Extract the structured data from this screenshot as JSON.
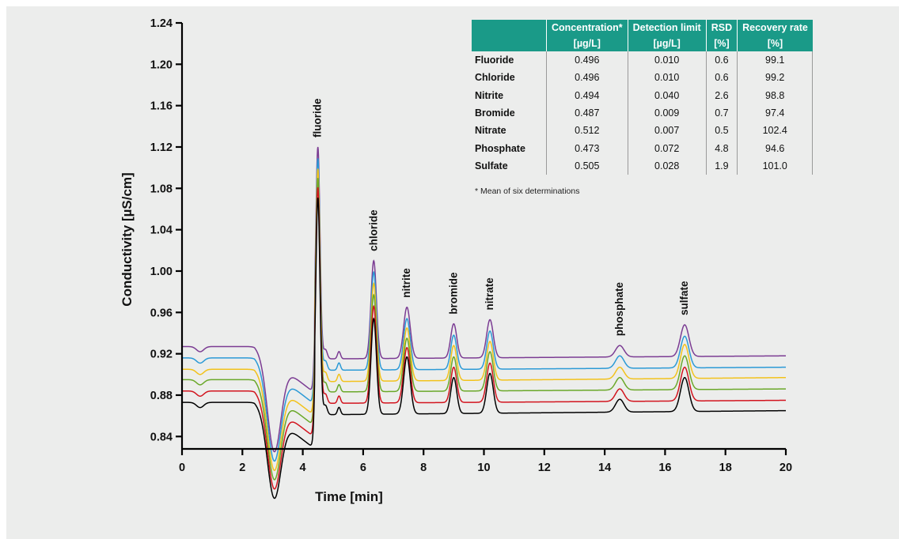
{
  "chart_data": {
    "type": "line",
    "xlabel": "Time [min]",
    "ylabel": "Conductivity [µS/cm]",
    "xlim": [
      0,
      20
    ],
    "ylim": [
      0.828,
      1.24
    ],
    "x_ticks": [
      "0",
      "2",
      "4",
      "6",
      "8",
      "10",
      "12",
      "14",
      "16",
      "18",
      "20"
    ],
    "y_ticks": [
      "0.84",
      "0.88",
      "0.92",
      "0.96",
      "1.00",
      "1.04",
      "1.08",
      "1.12",
      "1.16",
      "1.20",
      "1.24"
    ],
    "grid": false,
    "legend": "none",
    "series_colors": [
      "#000000",
      "#d2141e",
      "#6aa829",
      "#f2c21b",
      "#2b9ad6",
      "#7b3c93"
    ],
    "baselines_start": [
      0.873,
      0.884,
      0.895,
      0.905,
      0.916,
      0.927
    ],
    "baselines_end": [
      0.865,
      0.875,
      0.886,
      0.897,
      0.907,
      0.918
    ],
    "dip_minima": [
      0.795,
      0.804,
      0.813,
      0.822,
      0.831,
      0.84
    ],
    "peaks": [
      {
        "name": "fluoride",
        "time": 4.5,
        "apex": [
          1.071,
          1.081,
          1.09,
          1.099,
          1.109,
          1.12
        ]
      },
      {
        "name": "chloride",
        "time": 6.35,
        "apex": [
          0.954,
          0.966,
          0.977,
          0.988,
          0.999,
          1.01
        ]
      },
      {
        "name": "nitrite",
        "time": 7.45,
        "apex": [
          0.917,
          0.926,
          0.935,
          0.945,
          0.954,
          0.965
        ]
      },
      {
        "name": "bromide",
        "time": 9.0,
        "apex": [
          0.897,
          0.907,
          0.917,
          0.928,
          0.938,
          0.949
        ]
      },
      {
        "name": "nitrate",
        "time": 10.2,
        "apex": [
          0.901,
          0.911,
          0.922,
          0.932,
          0.942,
          0.953
        ]
      },
      {
        "name": "phosphate",
        "time": 14.5,
        "apex": [
          0.876,
          0.886,
          0.897,
          0.907,
          0.918,
          0.928
        ]
      },
      {
        "name": "sulfate",
        "time": 16.65,
        "apex": [
          0.897,
          0.907,
          0.918,
          0.929,
          0.937,
          0.948
        ]
      }
    ],
    "peak_labels": [
      "fluoride",
      "chloride",
      "nitrite",
      "bromide",
      "nitrate",
      "phosphate",
      "sulfate"
    ]
  },
  "table": {
    "headers": [
      {
        "line1": "",
        "line2": ""
      },
      {
        "line1": "Concentration*",
        "line2": "[µg/L]"
      },
      {
        "line1": "Detection limit",
        "line2": "[µg/L]"
      },
      {
        "line1": "RSD",
        "line2": "[%]"
      },
      {
        "line1": "Recovery rate",
        "line2": "[%]"
      }
    ],
    "rows": [
      [
        "Fluoride",
        "0.496",
        "0.010",
        "0.6",
        "99.1"
      ],
      [
        "Chloride",
        "0.496",
        "0.010",
        "0.6",
        "99.2"
      ],
      [
        "Nitrite",
        "0.494",
        "0.040",
        "2.6",
        "98.8"
      ],
      [
        "Bromide",
        "0.487",
        "0.009",
        "0.7",
        "97.4"
      ],
      [
        "Nitrate",
        "0.512",
        "0.007",
        "0.5",
        "102.4"
      ],
      [
        "Phosphate",
        "0.473",
        "0.072",
        "4.8",
        "94.6"
      ],
      [
        "Sulfate",
        "0.505",
        "0.028",
        "1.9",
        "101.0"
      ]
    ],
    "footnote": "* Mean of six determinations"
  }
}
